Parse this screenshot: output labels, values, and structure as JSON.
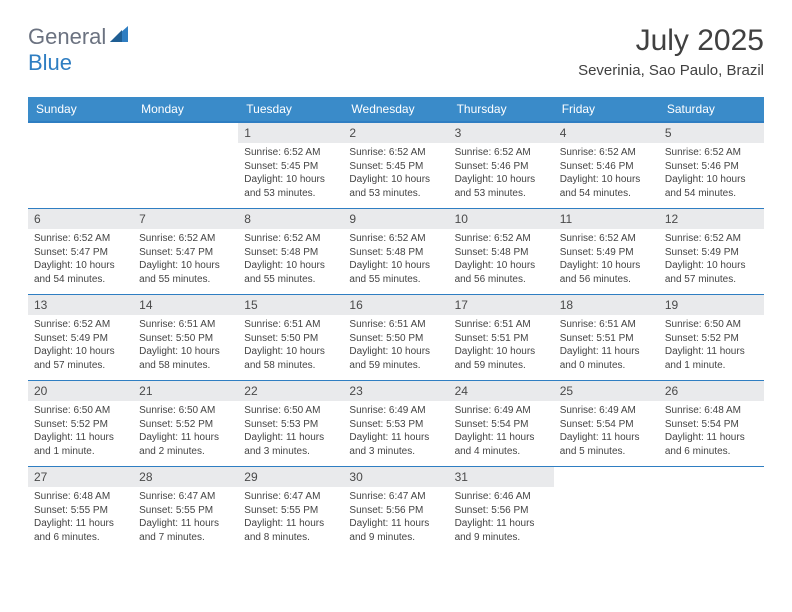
{
  "brand": {
    "part1": "General",
    "part2": "Blue"
  },
  "title": "July 2025",
  "location": "Severinia, Sao Paulo, Brazil",
  "colors": {
    "header_blue": "#3a8bc9",
    "rule_blue": "#2f7ec2",
    "daynum_bg": "#e9eaec",
    "text_dark": "#404040",
    "logo_gray": "#6b7280"
  },
  "weekdays": [
    "Sunday",
    "Monday",
    "Tuesday",
    "Wednesday",
    "Thursday",
    "Friday",
    "Saturday"
  ],
  "calendar": {
    "type": "table",
    "first_weekday_index": 2,
    "days": [
      {
        "n": 1,
        "sunrise": "6:52 AM",
        "sunset": "5:45 PM",
        "daylight": "10 hours and 53 minutes."
      },
      {
        "n": 2,
        "sunrise": "6:52 AM",
        "sunset": "5:45 PM",
        "daylight": "10 hours and 53 minutes."
      },
      {
        "n": 3,
        "sunrise": "6:52 AM",
        "sunset": "5:46 PM",
        "daylight": "10 hours and 53 minutes."
      },
      {
        "n": 4,
        "sunrise": "6:52 AM",
        "sunset": "5:46 PM",
        "daylight": "10 hours and 54 minutes."
      },
      {
        "n": 5,
        "sunrise": "6:52 AM",
        "sunset": "5:46 PM",
        "daylight": "10 hours and 54 minutes."
      },
      {
        "n": 6,
        "sunrise": "6:52 AM",
        "sunset": "5:47 PM",
        "daylight": "10 hours and 54 minutes."
      },
      {
        "n": 7,
        "sunrise": "6:52 AM",
        "sunset": "5:47 PM",
        "daylight": "10 hours and 55 minutes."
      },
      {
        "n": 8,
        "sunrise": "6:52 AM",
        "sunset": "5:48 PM",
        "daylight": "10 hours and 55 minutes."
      },
      {
        "n": 9,
        "sunrise": "6:52 AM",
        "sunset": "5:48 PM",
        "daylight": "10 hours and 55 minutes."
      },
      {
        "n": 10,
        "sunrise": "6:52 AM",
        "sunset": "5:48 PM",
        "daylight": "10 hours and 56 minutes."
      },
      {
        "n": 11,
        "sunrise": "6:52 AM",
        "sunset": "5:49 PM",
        "daylight": "10 hours and 56 minutes."
      },
      {
        "n": 12,
        "sunrise": "6:52 AM",
        "sunset": "5:49 PM",
        "daylight": "10 hours and 57 minutes."
      },
      {
        "n": 13,
        "sunrise": "6:52 AM",
        "sunset": "5:49 PM",
        "daylight": "10 hours and 57 minutes."
      },
      {
        "n": 14,
        "sunrise": "6:51 AM",
        "sunset": "5:50 PM",
        "daylight": "10 hours and 58 minutes."
      },
      {
        "n": 15,
        "sunrise": "6:51 AM",
        "sunset": "5:50 PM",
        "daylight": "10 hours and 58 minutes."
      },
      {
        "n": 16,
        "sunrise": "6:51 AM",
        "sunset": "5:50 PM",
        "daylight": "10 hours and 59 minutes."
      },
      {
        "n": 17,
        "sunrise": "6:51 AM",
        "sunset": "5:51 PM",
        "daylight": "10 hours and 59 minutes."
      },
      {
        "n": 18,
        "sunrise": "6:51 AM",
        "sunset": "5:51 PM",
        "daylight": "11 hours and 0 minutes."
      },
      {
        "n": 19,
        "sunrise": "6:50 AM",
        "sunset": "5:52 PM",
        "daylight": "11 hours and 1 minute."
      },
      {
        "n": 20,
        "sunrise": "6:50 AM",
        "sunset": "5:52 PM",
        "daylight": "11 hours and 1 minute."
      },
      {
        "n": 21,
        "sunrise": "6:50 AM",
        "sunset": "5:52 PM",
        "daylight": "11 hours and 2 minutes."
      },
      {
        "n": 22,
        "sunrise": "6:50 AM",
        "sunset": "5:53 PM",
        "daylight": "11 hours and 3 minutes."
      },
      {
        "n": 23,
        "sunrise": "6:49 AM",
        "sunset": "5:53 PM",
        "daylight": "11 hours and 3 minutes."
      },
      {
        "n": 24,
        "sunrise": "6:49 AM",
        "sunset": "5:54 PM",
        "daylight": "11 hours and 4 minutes."
      },
      {
        "n": 25,
        "sunrise": "6:49 AM",
        "sunset": "5:54 PM",
        "daylight": "11 hours and 5 minutes."
      },
      {
        "n": 26,
        "sunrise": "6:48 AM",
        "sunset": "5:54 PM",
        "daylight": "11 hours and 6 minutes."
      },
      {
        "n": 27,
        "sunrise": "6:48 AM",
        "sunset": "5:55 PM",
        "daylight": "11 hours and 6 minutes."
      },
      {
        "n": 28,
        "sunrise": "6:47 AM",
        "sunset": "5:55 PM",
        "daylight": "11 hours and 7 minutes."
      },
      {
        "n": 29,
        "sunrise": "6:47 AM",
        "sunset": "5:55 PM",
        "daylight": "11 hours and 8 minutes."
      },
      {
        "n": 30,
        "sunrise": "6:47 AM",
        "sunset": "5:56 PM",
        "daylight": "11 hours and 9 minutes."
      },
      {
        "n": 31,
        "sunrise": "6:46 AM",
        "sunset": "5:56 PM",
        "daylight": "11 hours and 9 minutes."
      }
    ]
  },
  "labels": {
    "sunrise": "Sunrise:",
    "sunset": "Sunset:",
    "daylight": "Daylight:"
  }
}
